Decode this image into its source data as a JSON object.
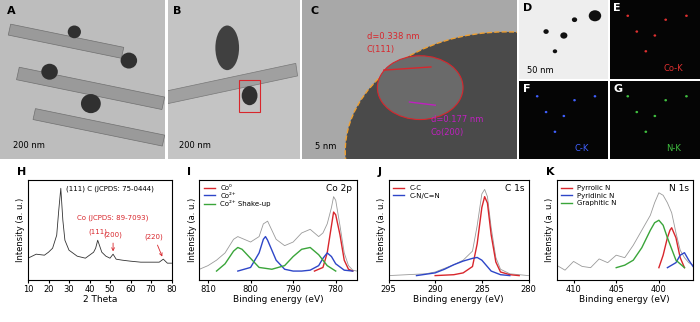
{
  "images": [
    {
      "panel": "A",
      "background": "#bdbdbd",
      "letter_color": "#000000",
      "texts": [
        {
          "text": "200 nm",
          "color": "#000000"
        }
      ]
    },
    {
      "panel": "B",
      "background": "#c4c4c4",
      "letter_color": "#000000",
      "texts": [
        {
          "text": "200 nm",
          "color": "#000000"
        }
      ]
    },
    {
      "panel": "C",
      "background": "#a8a8a8",
      "letter_color": "#000000",
      "texts": [
        {
          "text": "5 nm",
          "color": "#000000"
        },
        {
          "text": "d=0.338 nm",
          "color": "#d8262c"
        },
        {
          "text": "C(111)",
          "color": "#d8262c"
        },
        {
          "text": "d=0.177 nm",
          "color": "#c020c0"
        },
        {
          "text": "Co(200)",
          "color": "#c020c0"
        }
      ]
    },
    {
      "panel": "D",
      "background": "#eeeeee",
      "letter_color": "#000000",
      "texts": [
        {
          "text": "50 nm",
          "color": "#000000"
        }
      ]
    },
    {
      "panel": "E",
      "background": "#050505",
      "letter_color": "#ffffff",
      "texts": [
        {
          "text": "Co-K",
          "color": "#e03030"
        }
      ]
    },
    {
      "panel": "F",
      "background": "#050505",
      "letter_color": "#ffffff",
      "texts": [
        {
          "text": "C-K",
          "color": "#4060ff"
        }
      ]
    },
    {
      "panel": "G",
      "background": "#050505",
      "letter_color": "#ffffff",
      "texts": [
        {
          "text": "N-K",
          "color": "#40c040"
        }
      ]
    }
  ],
  "chart_data": [
    {
      "type": "line",
      "panel": "H",
      "xlabel": "2 Theta",
      "ylabel": "Intensity (a. u.)",
      "xlim": [
        10,
        80
      ],
      "xticks": [
        10,
        20,
        30,
        40,
        50,
        60,
        70,
        80
      ],
      "ylim": [
        0,
        100
      ],
      "yticks": [],
      "tick_labels": "x",
      "grid": false,
      "series": [
        {
          "color": "#333333",
          "x": [
            10,
            14,
            18,
            20,
            22,
            24,
            25,
            26,
            27,
            28,
            30,
            34,
            38,
            42,
            43,
            44,
            45,
            46,
            48,
            50,
            51.5,
            53,
            56,
            60,
            65,
            70,
            74,
            76,
            78,
            80
          ],
          "values": [
            22,
            26,
            25,
            28,
            32,
            45,
            70,
            92,
            60,
            40,
            30,
            24,
            22,
            28,
            32,
            40,
            34,
            28,
            24,
            22,
            26,
            21,
            20,
            19,
            18,
            18,
            18,
            21,
            17,
            17
          ]
        }
      ],
      "annotations": [
        {
          "text": "(111) C (JCPDS: 75-0444)",
          "x": 26,
          "color": "#000000"
        },
        {
          "text": "Co (JCPDS: 89-7093)",
          "x": 51.5,
          "color": "#d8262c"
        },
        {
          "text": "(111)",
          "x": 44,
          "color": "#d8262c"
        },
        {
          "text": "(200)",
          "x": 51.5,
          "color": "#d8262c"
        },
        {
          "text": "(220)",
          "x": 76,
          "color": "#d8262c"
        }
      ]
    },
    {
      "type": "line",
      "panel": "I",
      "title": "Co 2p",
      "xlabel": "Binding energy (eV)",
      "ylabel": "Intensity (a. u.)",
      "xlim": [
        812,
        775
      ],
      "xticks": [
        810,
        800,
        790,
        780
      ],
      "ylim": [
        0,
        110
      ],
      "yticks": [],
      "tick_labels": "x",
      "grid": false,
      "legend": "upper left",
      "series": [
        {
          "color": "#9a9a9a",
          "x": [
            812,
            810,
            808,
            806,
            804,
            803,
            802,
            800,
            798,
            797,
            796,
            795,
            794,
            792,
            790,
            788,
            786,
            785,
            784,
            783,
            782,
            781,
            780.5,
            780,
            779,
            778,
            777,
            776,
            775
          ],
          "values": [
            12,
            16,
            22,
            30,
            45,
            48,
            46,
            42,
            48,
            62,
            65,
            55,
            45,
            38,
            42,
            52,
            56,
            52,
            48,
            52,
            62,
            80,
            92,
            88,
            60,
            30,
            16,
            11,
            10
          ]
        },
        {
          "name": "Co⁰",
          "color": "#d8262c",
          "x": [
            785,
            783,
            782,
            781,
            780.5,
            780,
            779,
            778,
            777,
            776
          ],
          "values": [
            10,
            14,
            30,
            60,
            75,
            72,
            50,
            22,
            12,
            10
          ]
        },
        {
          "name": "Co²⁺",
          "color": "#2e46c8",
          "x": [
            803,
            800,
            798,
            797,
            796.5,
            796,
            794,
            792,
            790,
            788,
            786,
            784,
            783,
            782,
            781,
            780,
            778,
            776
          ],
          "values": [
            10,
            14,
            30,
            45,
            48,
            44,
            22,
            12,
            10,
            10,
            11,
            16,
            24,
            30,
            26,
            18,
            11,
            10
          ]
        },
        {
          "name": "Co²⁺ Shake-up",
          "color": "#3aa53a",
          "x": [
            808,
            806,
            804,
            803,
            802,
            800,
            798,
            795,
            792,
            790,
            788,
            786,
            784,
            782,
            780
          ],
          "values": [
            10,
            18,
            32,
            36,
            34,
            24,
            14,
            12,
            16,
            26,
            34,
            36,
            28,
            16,
            10
          ]
        }
      ]
    },
    {
      "type": "line",
      "panel": "J",
      "title": "C 1s",
      "xlabel": "Binding energy (eV)",
      "ylabel": "Intensity (a. u.)",
      "xlim": [
        295,
        280
      ],
      "xticks": [
        295,
        290,
        285,
        280
      ],
      "ylim": [
        0,
        110
      ],
      "yticks": [],
      "tick_labels": "x",
      "grid": false,
      "legend": "upper left",
      "series": [
        {
          "color": "#9a9a9a",
          "x": [
            295,
            293,
            291,
            290,
            289,
            288,
            287,
            286,
            285.5,
            285,
            284.7,
            284.4,
            284,
            283.5,
            283,
            282,
            280
          ],
          "values": [
            5,
            6,
            7,
            9,
            13,
            17,
            22,
            32,
            60,
            95,
            100,
            92,
            58,
            25,
            12,
            7,
            5
          ]
        },
        {
          "name": "C-C",
          "color": "#d8262c",
          "x": [
            290,
            288,
            287,
            286,
            285.5,
            285,
            284.7,
            284.4,
            284,
            283.5,
            283,
            282,
            281
          ],
          "values": [
            5,
            6,
            8,
            15,
            40,
            80,
            92,
            85,
            50,
            20,
            9,
            6,
            5
          ]
        },
        {
          "name": "C-N/C=N",
          "color": "#2e46c8",
          "x": [
            292,
            290,
            289,
            288,
            287,
            286,
            285.5,
            285,
            284.5,
            284,
            283,
            282
          ],
          "values": [
            5,
            8,
            12,
            17,
            21,
            24,
            25,
            22,
            16,
            10,
            6,
            5
          ]
        }
      ]
    },
    {
      "type": "line",
      "panel": "K",
      "title": "N 1s",
      "xlabel": "Binding energy (eV)",
      "ylabel": "Intensity (a. u.)",
      "xlim": [
        412,
        396
      ],
      "xticks": [
        410,
        405,
        400
      ],
      "ylim": [
        10,
        90
      ],
      "yticks": [],
      "tick_labels": "x",
      "grid": false,
      "legend": "upper left",
      "series": [
        {
          "color": "#9a9a9a",
          "x": [
            412,
            411,
            410,
            409,
            408,
            407,
            406,
            405,
            404,
            403,
            402,
            401,
            400.5,
            400,
            399.5,
            399,
            398.5,
            398,
            397.5,
            397,
            396.5,
            396
          ],
          "values": [
            22,
            18,
            25,
            21,
            20,
            27,
            24,
            30,
            28,
            38,
            50,
            62,
            72,
            80,
            78,
            72,
            64,
            48,
            34,
            28,
            24,
            22
          ]
        },
        {
          "name": "Pyrrolic N",
          "color": "#d8262c",
          "x": [
            400,
            399.5,
            399,
            398.7,
            398.5,
            398,
            397.5,
            397
          ],
          "values": [
            20,
            30,
            44,
            50,
            52,
            44,
            28,
            20
          ]
        },
        {
          "name": "Pyridinic N",
          "color": "#2e46c8",
          "x": [
            399,
            398,
            397.5,
            397,
            396.5,
            396
          ],
          "values": [
            20,
            24,
            30,
            32,
            26,
            21
          ]
        },
        {
          "name": "Graphitic N",
          "color": "#3aa53a",
          "x": [
            405,
            404,
            403,
            402,
            401,
            400.5,
            400,
            399.5,
            399,
            398,
            397
          ],
          "values": [
            20,
            22,
            26,
            36,
            50,
            56,
            58,
            54,
            44,
            26,
            20
          ]
        }
      ]
    }
  ]
}
